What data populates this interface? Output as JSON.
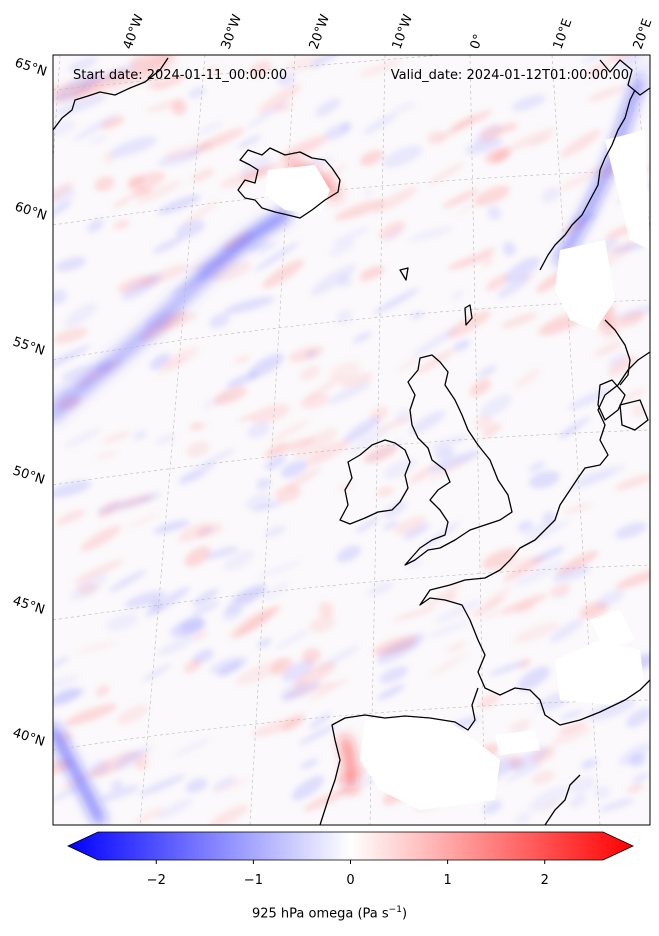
{
  "header": {
    "start_date": "Start date: 2024-01-11_00:00:00",
    "valid_date": "Valid_date: 2024-01-12T01:00:00.00"
  },
  "longitude_labels": [
    "40°W",
    "30°W",
    "20°W",
    "10°W",
    "0°",
    "10°E",
    "20°E"
  ],
  "latitude_labels": [
    "65°N",
    "60°N",
    "55°N",
    "50°N",
    "45°N",
    "40°N"
  ],
  "colorbar": {
    "label_text": "925 hPa omega (Pa s",
    "label_exp": "−1",
    "label_tail": ")",
    "ticks": [
      "−2",
      "−1",
      "0",
      "1",
      "2"
    ],
    "min": -2.6,
    "max": 2.6,
    "colors": {
      "low": "#0000ff",
      "mid": "#ffffff",
      "high": "#ff0000"
    }
  },
  "colors": {
    "coast": "#000000",
    "grid": "#aaaaaa",
    "missing": "#ffffff"
  }
}
